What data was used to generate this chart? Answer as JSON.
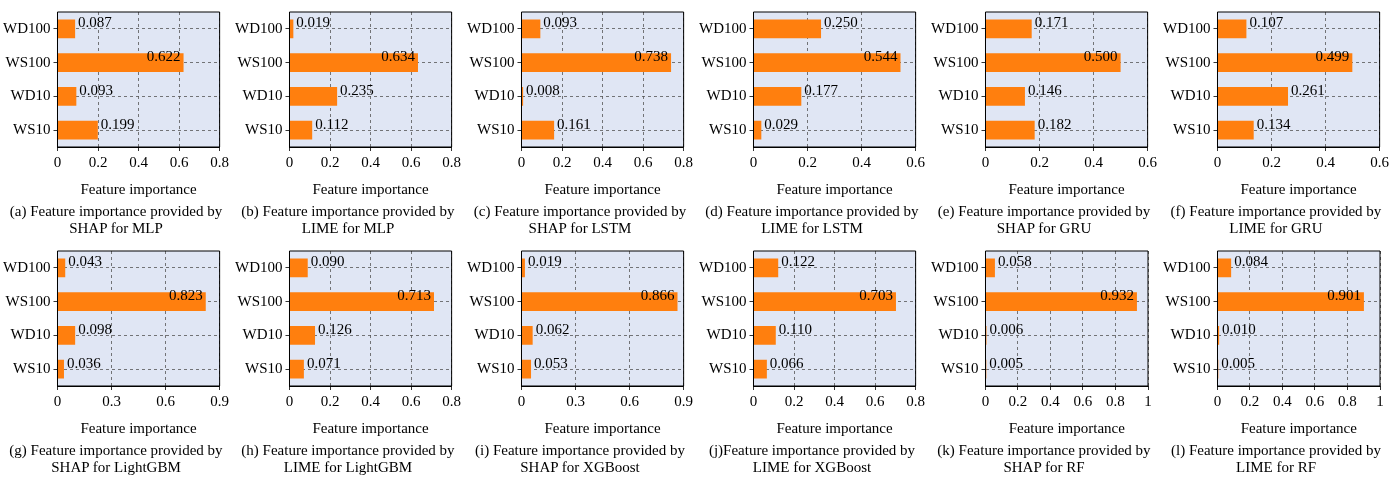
{
  "chart_data": [
    {
      "type": "bar",
      "orientation": "horizontal",
      "categories": [
        "WD100",
        "WS100",
        "WD10",
        "WS10"
      ],
      "values": [
        0.087,
        0.622,
        0.093,
        0.199
      ],
      "value_labels": [
        "0.087",
        "0.622",
        "0.093",
        "0.199"
      ],
      "color": "#ff7f0e",
      "xlim": [
        0,
        0.8
      ],
      "xticks": [
        0,
        0.2,
        0.4,
        0.6,
        0.8
      ],
      "xlabel": "Feature importance",
      "grid": true,
      "annotations": [
        "(a) Feature importance provided by SHAP for MLP"
      ]
    },
    {
      "type": "bar",
      "orientation": "horizontal",
      "categories": [
        "WD100",
        "WS100",
        "WD10",
        "WS10"
      ],
      "values": [
        0.019,
        0.634,
        0.235,
        0.112
      ],
      "value_labels": [
        "0.019",
        "0.634",
        "0.235",
        "0.112"
      ],
      "color": "#ff7f0e",
      "xlim": [
        0,
        0.8
      ],
      "xticks": [
        0,
        0.2,
        0.4,
        0.6,
        0.8
      ],
      "xlabel": "Feature importance",
      "grid": true,
      "annotations": [
        "(b) Feature importance provided by LIME for MLP"
      ]
    },
    {
      "type": "bar",
      "orientation": "horizontal",
      "categories": [
        "WD100",
        "WS100",
        "WD10",
        "WS10"
      ],
      "values": [
        0.093,
        0.738,
        0.008,
        0.161
      ],
      "value_labels": [
        "0.093",
        "0.738",
        "0.008",
        "0.161"
      ],
      "color": "#ff7f0e",
      "xlim": [
        0,
        0.8
      ],
      "xticks": [
        0,
        0.2,
        0.4,
        0.6,
        0.8
      ],
      "xlabel": "Feature importance",
      "grid": true,
      "annotations": [
        "(c) Feature importance provided by SHAP for LSTM"
      ]
    },
    {
      "type": "bar",
      "orientation": "horizontal",
      "categories": [
        "WD100",
        "WS100",
        "WD10",
        "WS10"
      ],
      "values": [
        0.25,
        0.544,
        0.177,
        0.029
      ],
      "value_labels": [
        "0.250",
        "0.544",
        "0.177",
        "0.029"
      ],
      "color": "#ff7f0e",
      "xlim": [
        0,
        0.6
      ],
      "xticks": [
        0,
        0.2,
        0.4,
        0.6
      ],
      "xlabel": "Feature importance",
      "grid": true,
      "annotations": [
        "(d) Feature importance provided by LIME for LSTM"
      ]
    },
    {
      "type": "bar",
      "orientation": "horizontal",
      "categories": [
        "WD100",
        "WS100",
        "WD10",
        "WS10"
      ],
      "values": [
        0.171,
        0.5,
        0.146,
        0.182
      ],
      "value_labels": [
        "0.171",
        "0.500",
        "0.146",
        "0.182"
      ],
      "color": "#ff7f0e",
      "xlim": [
        0,
        0.6
      ],
      "xticks": [
        0,
        0.2,
        0.4,
        0.6
      ],
      "xlabel": "Feature importance",
      "grid": true,
      "annotations": [
        "(e) Feature importance provided by SHAP for GRU"
      ]
    },
    {
      "type": "bar",
      "orientation": "horizontal",
      "categories": [
        "WD100",
        "WS100",
        "WD10",
        "WS10"
      ],
      "values": [
        0.107,
        0.499,
        0.261,
        0.134
      ],
      "value_labels": [
        "0.107",
        "0.499",
        "0.261",
        "0.134"
      ],
      "color": "#ff7f0e",
      "xlim": [
        0,
        0.6
      ],
      "xticks": [
        0,
        0.2,
        0.4,
        0.6
      ],
      "xlabel": "Feature importance",
      "grid": true,
      "annotations": [
        "(f) Feature importance provided by LIME for GRU"
      ]
    },
    {
      "type": "bar",
      "orientation": "horizontal",
      "categories": [
        "WD100",
        "WS100",
        "WD10",
        "WS10"
      ],
      "values": [
        0.043,
        0.823,
        0.098,
        0.036
      ],
      "value_labels": [
        "0.043",
        "0.823",
        "0.098",
        "0.036"
      ],
      "color": "#ff7f0e",
      "xlim": [
        0,
        0.9
      ],
      "xticks": [
        0,
        0.3,
        0.6,
        0.9
      ],
      "xlabel": "Feature importance",
      "grid": true,
      "annotations": [
        "(g) Feature importance provided by SHAP for LightGBM"
      ]
    },
    {
      "type": "bar",
      "orientation": "horizontal",
      "categories": [
        "WD100",
        "WS100",
        "WD10",
        "WS10"
      ],
      "values": [
        0.09,
        0.713,
        0.126,
        0.071
      ],
      "value_labels": [
        "0.090",
        "0.713",
        "0.126",
        "0.071"
      ],
      "color": "#ff7f0e",
      "xlim": [
        0,
        0.8
      ],
      "xticks": [
        0,
        0.2,
        0.4,
        0.6,
        0.8
      ],
      "xlabel": "Feature importance",
      "grid": true,
      "annotations": [
        "(h) Feature importance provided by LIME for LightGBM"
      ]
    },
    {
      "type": "bar",
      "orientation": "horizontal",
      "categories": [
        "WD100",
        "WS100",
        "WD10",
        "WS10"
      ],
      "values": [
        0.019,
        0.866,
        0.062,
        0.053
      ],
      "value_labels": [
        "0.019",
        "0.866",
        "0.062",
        "0.053"
      ],
      "color": "#ff7f0e",
      "xlim": [
        0,
        0.9
      ],
      "xticks": [
        0,
        0.3,
        0.6,
        0.9
      ],
      "xlabel": "Feature importance",
      "grid": true,
      "annotations": [
        "(i) Feature importance provided by SHAP for XGBoost"
      ]
    },
    {
      "type": "bar",
      "orientation": "horizontal",
      "categories": [
        "WD100",
        "WS100",
        "WD10",
        "WS10"
      ],
      "values": [
        0.122,
        0.703,
        0.11,
        0.066
      ],
      "value_labels": [
        "0.122",
        "0.703",
        "0.110",
        "0.066"
      ],
      "color": "#ff7f0e",
      "xlim": [
        0,
        0.8
      ],
      "xticks": [
        0,
        0.2,
        0.4,
        0.6,
        0.8
      ],
      "xlabel": "Feature importance",
      "grid": true,
      "annotations": [
        "(j)Feature importance provided by LIME for XGBoost"
      ]
    },
    {
      "type": "bar",
      "orientation": "horizontal",
      "categories": [
        "WD100",
        "WS100",
        "WD10",
        "WS10"
      ],
      "values": [
        0.058,
        0.932,
        0.006,
        0.005
      ],
      "value_labels": [
        "0.058",
        "0.932",
        "0.006",
        "0.005"
      ],
      "color": "#ff7f0e",
      "xlim": [
        0,
        1
      ],
      "xticks": [
        0,
        0.2,
        0.4,
        0.6,
        0.8,
        1
      ],
      "xlabel": "Feature importance",
      "grid": true,
      "annotations": [
        "(k) Feature importance provided by SHAP for RF"
      ]
    },
    {
      "type": "bar",
      "orientation": "horizontal",
      "categories": [
        "WD100",
        "WS100",
        "WD10",
        "WS10"
      ],
      "values": [
        0.084,
        0.901,
        0.01,
        0.005
      ],
      "value_labels": [
        "0.084",
        "0.901",
        "0.010",
        "0.005"
      ],
      "color": "#ff7f0e",
      "xlim": [
        0,
        1
      ],
      "xticks": [
        0,
        0.2,
        0.4,
        0.6,
        0.8,
        1
      ],
      "xlabel": "Feature importance",
      "grid": true,
      "annotations": [
        "(l) Feature importance provided by LIME for RF"
      ]
    }
  ]
}
